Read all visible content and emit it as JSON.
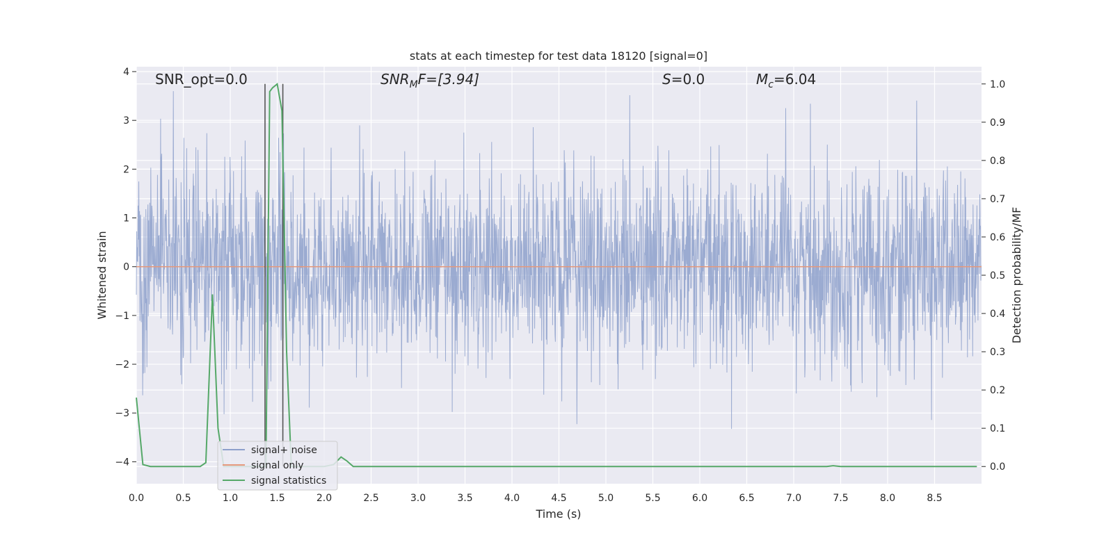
{
  "chart_data": {
    "type": "line",
    "title": "stats at each timestep for test data 18120 [signal=0]",
    "xlabel": "Time (s)",
    "ylabel": "Whitened strain",
    "y2label": "Detection probability/MF",
    "xlim": [
      0.0,
      9.0
    ],
    "ylim": [
      -4.45,
      4.1
    ],
    "y2lim": [
      -0.045,
      1.045
    ],
    "xticks": [
      "0.0",
      "0.5",
      "1.0",
      "1.5",
      "2.0",
      "2.5",
      "3.0",
      "3.5",
      "4.0",
      "4.5",
      "5.0",
      "5.5",
      "6.0",
      "6.5",
      "7.0",
      "7.5",
      "8.0",
      "8.5"
    ],
    "yticks": [
      "4",
      "3",
      "2",
      "1",
      "0",
      "−1",
      "−2",
      "−3",
      "−4"
    ],
    "y2ticks": [
      "1.0",
      "0.9",
      "0.8",
      "0.7",
      "0.6",
      "0.5",
      "0.4",
      "0.3",
      "0.2",
      "0.1",
      "0.0"
    ],
    "grid": true,
    "legend_position": "lower-left",
    "annotations": {
      "snr_opt": "SNR_opt=0.0",
      "snr_mf_base": "SNR",
      "snr_mf_sub": "M",
      "snr_mf_rest": "F=[3.94]",
      "s_label": "S",
      "s_rest": "=0.0",
      "mc_base": "M",
      "mc_sub": "c",
      "mc_rest": "=6.04"
    },
    "markers_x": [
      1.37,
      1.56
    ],
    "series": [
      {
        "name": "signal+ noise",
        "color": "#8da0cb",
        "kind": "noise",
        "approx_std": 1.0,
        "approx_range": [
          -3.4,
          3.6
        ]
      },
      {
        "name": "signal only",
        "color": "#e5997c",
        "kind": "constant",
        "value": 0.0
      },
      {
        "name": "signal statistics",
        "color": "#55a868",
        "kind": "line",
        "x": [
          0.0,
          0.07,
          0.15,
          0.3,
          0.5,
          0.68,
          0.74,
          0.81,
          0.87,
          0.93,
          1.0,
          1.1,
          1.2,
          1.3,
          1.35,
          1.38,
          1.42,
          1.45,
          1.5,
          1.55,
          1.6,
          1.65,
          1.7,
          1.8,
          1.9,
          2.0,
          2.1,
          2.18,
          2.24,
          2.31,
          2.5,
          3.0,
          4.0,
          5.0,
          6.0,
          7.0,
          7.35,
          7.42,
          7.5,
          8.0,
          8.5,
          8.95
        ],
        "y": [
          0.18,
          0.005,
          0.0,
          0.0,
          0.0,
          0.0,
          0.01,
          0.45,
          0.1,
          0.0,
          0.0,
          0.0,
          0.0,
          0.0,
          0.0,
          0.0,
          0.98,
          0.99,
          1.0,
          0.93,
          0.3,
          0.0,
          0.0,
          0.0,
          0.0,
          0.0,
          0.005,
          0.025,
          0.015,
          0.0,
          0.0,
          0.0,
          0.0,
          0.0,
          0.0,
          0.0,
          0.0,
          0.002,
          0.0,
          0.0,
          0.0,
          0.0
        ]
      }
    ]
  }
}
